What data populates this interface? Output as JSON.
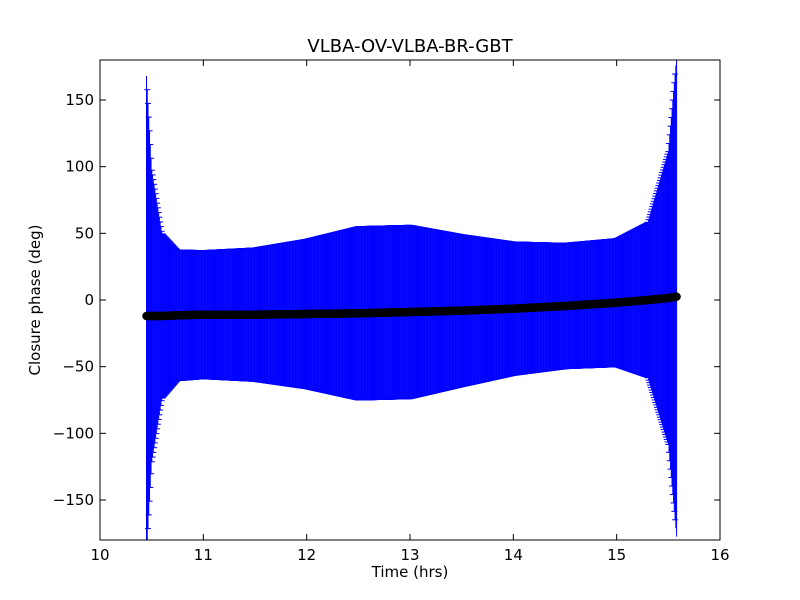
{
  "chart_data": {
    "type": "scatter",
    "title": "VLBA-OV-VLBA-BR-GBT",
    "xlabel": "Time (hrs)",
    "ylabel": "Closure phase (deg)",
    "xlim": [
      10,
      16
    ],
    "ylim": [
      -180,
      180
    ],
    "xticks": [
      10,
      11,
      12,
      13,
      14,
      15,
      16
    ],
    "xtick_labels": [
      "10",
      "11",
      "12",
      "13",
      "14",
      "15",
      "16"
    ],
    "yticks": [
      -150,
      -100,
      -50,
      0,
      50,
      100,
      150
    ],
    "ytick_labels": [
      "−150",
      "−100",
      "−50",
      "0",
      "50",
      "100",
      "150"
    ],
    "grid": false,
    "legend": "none",
    "series": [
      {
        "kind": "points_with_errorbars",
        "marker": "circle",
        "marker_color": "#000000",
        "errorbar_color": "#0000ff",
        "x": [
          10.45,
          10.5,
          10.6,
          10.75,
          11.0,
          11.5,
          12.0,
          12.5,
          13.0,
          13.5,
          14.0,
          14.5,
          15.0,
          15.3,
          15.5,
          15.58
        ],
        "y": [
          -12,
          -12,
          -12,
          -11.5,
          -11,
          -11,
          -10.5,
          -10,
          -9,
          -8,
          -6.5,
          -4.5,
          -2,
          0,
          1.5,
          2.5
        ],
        "err": [
          180,
          110,
          62,
          49,
          48,
          50,
          56,
          65,
          65,
          57,
          50,
          47,
          48,
          58,
          110,
          180
        ]
      }
    ]
  }
}
